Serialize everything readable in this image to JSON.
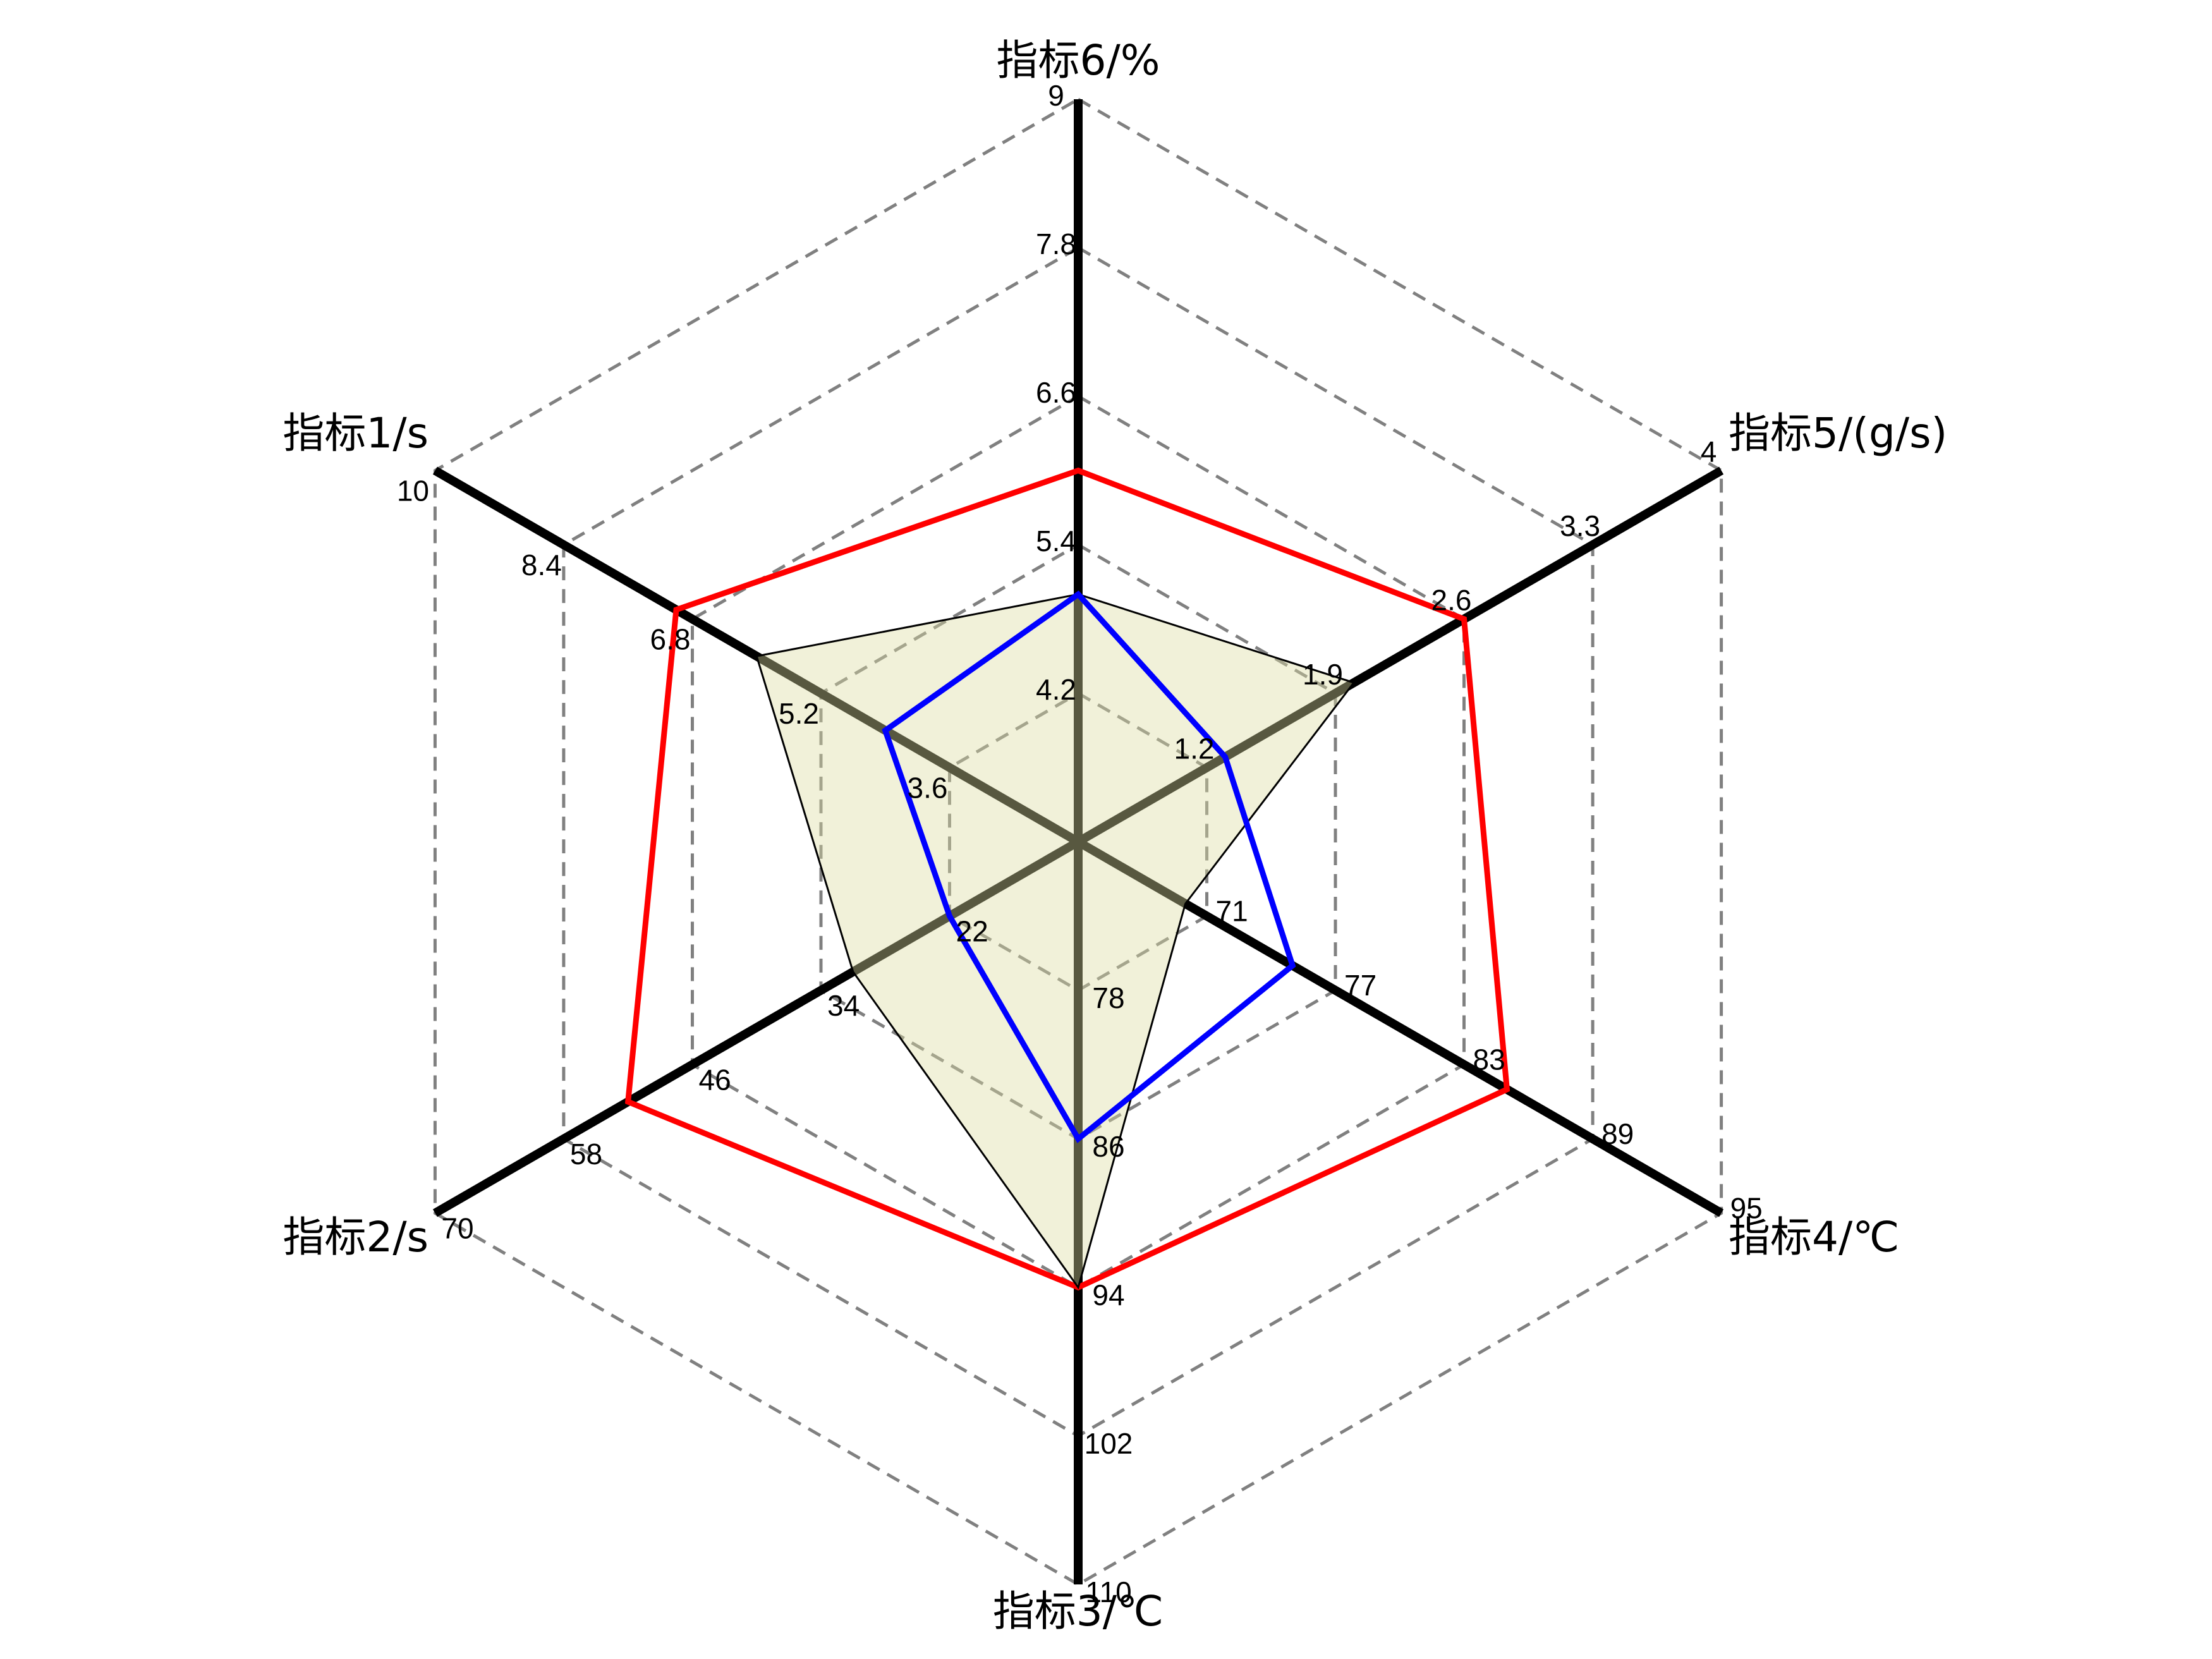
{
  "chart_data": {
    "type": "radar",
    "axes": [
      {
        "name": "指标6/%",
        "ticks": [
          "4.2",
          "5.4",
          "6.6",
          "7.8",
          "9"
        ],
        "min": 3,
        "max": 9
      },
      {
        "name": "指标5/(g/s)",
        "ticks": [
          "1.2",
          "1.9",
          "2.6",
          "3.3",
          "4"
        ],
        "min": 0.5,
        "max": 4
      },
      {
        "name": "指标4/℃",
        "ticks": [
          "71",
          "77",
          "83",
          "89",
          "95"
        ],
        "min": 65,
        "max": 95
      },
      {
        "name": "指标3/℃",
        "ticks": [
          "78",
          "86",
          "94",
          "102",
          "110"
        ],
        "min": 70,
        "max": 110
      },
      {
        "name": "指标2/s",
        "ticks": [
          "22",
          "34",
          "46",
          "58",
          "70"
        ],
        "min": 10,
        "max": 70
      },
      {
        "name": "指标1/s",
        "ticks": [
          "3.6",
          "5.2",
          "6.8",
          "8.4",
          "10"
        ],
        "min": 2,
        "max": 10
      }
    ],
    "series": [
      {
        "values": [
          6.0,
          2.6,
          85.0,
          94.0,
          52.0,
          7.0
        ],
        "color": "#ff0000",
        "fill": "none",
        "style": "outline"
      },
      {
        "values": [
          5.0,
          2.0,
          70.0,
          94.0,
          31.0,
          6.0
        ],
        "color": "#000000",
        "fill": "#dcdca0",
        "style": "filled"
      },
      {
        "values": [
          5.0,
          1.3,
          75.0,
          86.0,
          22.0,
          4.4
        ],
        "color": "#0000ff",
        "fill": "none",
        "style": "outline"
      }
    ],
    "grid": "dashed hexagon",
    "legend": "none"
  }
}
